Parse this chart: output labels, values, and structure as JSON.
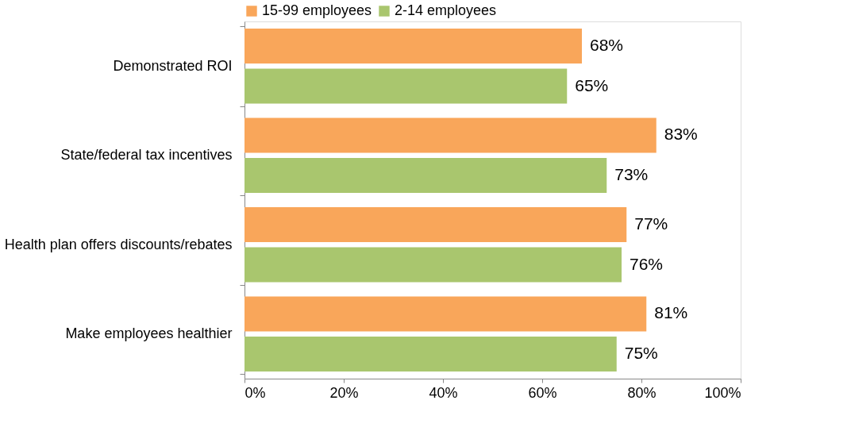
{
  "chart_data": {
    "type": "bar",
    "orientation": "horizontal",
    "legend": "top",
    "grid": false,
    "categories": [
      "Demonstrated ROI",
      "State/federal tax incentives",
      "Health plan offers discounts/rebates",
      "Make employees healthier"
    ],
    "series": [
      {
        "name": "15-99 employees",
        "color": "#f9a65a",
        "values": [
          68,
          83,
          77,
          81
        ],
        "value_labels": [
          "68%",
          "83%",
          "77%",
          "81%"
        ]
      },
      {
        "name": "2-14 employees",
        "color": "#a9c66e",
        "values": [
          65,
          73,
          76,
          75
        ],
        "value_labels": [
          "65%",
          "73%",
          "76%",
          "75%"
        ]
      }
    ],
    "xlim": [
      0,
      100
    ],
    "xticks": [
      {
        "value": 0,
        "label": "0%"
      },
      {
        "value": 20,
        "label": "20%"
      },
      {
        "value": 40,
        "label": "40%"
      },
      {
        "value": 60,
        "label": "60%"
      },
      {
        "value": 80,
        "label": "80%"
      },
      {
        "value": 100,
        "label": "100%"
      }
    ]
  }
}
